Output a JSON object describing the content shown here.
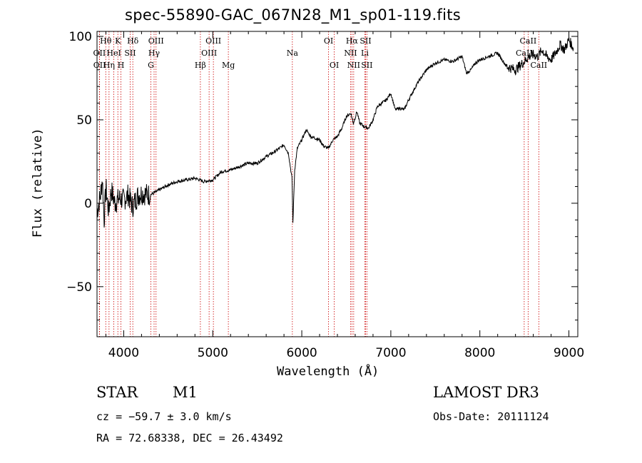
{
  "chart_data": {
    "type": "line",
    "title": "spec-55890-GAC_067N28_M1_sp01-119.fits",
    "xlabel": "Wavelength (Å)",
    "ylabel": "Flux (relative)",
    "xlim": [
      3700,
      9100
    ],
    "ylim": [
      -80,
      103
    ],
    "xticks": [
      4000,
      5000,
      6000,
      7000,
      8000,
      9000
    ],
    "xtick_labels": [
      "4000",
      "5000",
      "6000",
      "7000",
      "8000",
      "9000"
    ],
    "yticks": [
      -50,
      0,
      50,
      100
    ],
    "ytick_labels": [
      "−50",
      "0",
      "50",
      "100"
    ],
    "grid": false,
    "series": [
      {
        "x": [
          3700,
          3740,
          3760,
          3780,
          3800,
          3830,
          3860,
          3900,
          3950,
          4000,
          4050,
          4100,
          4150,
          4200,
          4300,
          4400,
          4500,
          4600,
          4700,
          4800,
          4850,
          4900,
          5000,
          5100,
          5200,
          5300,
          5400,
          5500,
          5600,
          5700,
          5800,
          5850,
          5890,
          5900,
          5920,
          5950,
          6000,
          6050,
          6100,
          6150,
          6200,
          6250,
          6300,
          6350,
          6400,
          6450,
          6500,
          6550,
          6580,
          6620,
          6650,
          6700,
          6750,
          6800,
          6850,
          6900,
          6950,
          7000,
          7050,
          7100,
          7150,
          7200,
          7300,
          7400,
          7500,
          7600,
          7700,
          7800,
          7850,
          7900,
          7950,
          8000,
          8100,
          8200,
          8300,
          8400,
          8500,
          8550,
          8600,
          8650,
          8700,
          8750,
          8800,
          8850,
          8900,
          8950,
          9000,
          9050
        ],
        "y": [
          -5,
          5,
          15,
          -10,
          10,
          -5,
          8,
          0,
          3,
          2,
          5,
          -2,
          4,
          6,
          5,
          8,
          11,
          13,
          14,
          15,
          14,
          13,
          14,
          19,
          20,
          22,
          24,
          24,
          28,
          31,
          35,
          30,
          15,
          -12,
          20,
          33,
          38,
          44,
          40,
          39,
          38,
          34,
          33,
          38,
          40,
          45,
          52,
          54,
          48,
          55,
          48,
          46,
          45,
          50,
          58,
          60,
          62,
          66,
          56,
          57,
          56,
          62,
          72,
          80,
          84,
          86,
          85,
          88,
          78,
          80,
          84,
          86,
          88,
          90,
          82,
          80,
          85,
          88,
          89,
          88,
          92,
          88,
          86,
          90,
          95,
          92,
          98,
          93
        ]
      }
    ],
    "line_markers": [
      {
        "label": "Hθ",
        "x": 3798,
        "row": 0
      },
      {
        "label": "OII",
        "x": 3727,
        "row": 1
      },
      {
        "label": "OII",
        "x": 3729,
        "row": 2
      },
      {
        "label": "Hη",
        "x": 3835,
        "row": 2
      },
      {
        "label": "HeI",
        "x": 3889,
        "row": 1
      },
      {
        "label": "K",
        "x": 3934,
        "row": 0
      },
      {
        "label": "H",
        "x": 3969,
        "row": 2
      },
      {
        "label": "SII",
        "x": 4072,
        "row": 1
      },
      {
        "label": "Hδ",
        "x": 4102,
        "row": 0
      },
      {
        "label": "G",
        "x": 4305,
        "row": 2
      },
      {
        "label": "Hγ",
        "x": 4341,
        "row": 1
      },
      {
        "label": "OIII",
        "x": 4363,
        "row": 0
      },
      {
        "label": "Hβ",
        "x": 4861,
        "row": 2
      },
      {
        "label": "OIII",
        "x": 4959,
        "row": 1
      },
      {
        "label": "OIII",
        "x": 5007,
        "row": 0
      },
      {
        "label": "Mg",
        "x": 5175,
        "row": 2
      },
      {
        "label": "Na",
        "x": 5894,
        "row": 1
      },
      {
        "label": "OI",
        "x": 6300,
        "row": 0
      },
      {
        "label": "OI",
        "x": 6364,
        "row": 2
      },
      {
        "label": "NII",
        "x": 6548,
        "row": 1
      },
      {
        "label": "Hα",
        "x": 6563,
        "row": 0
      },
      {
        "label": "NII",
        "x": 6583,
        "row": 2
      },
      {
        "label": "Li",
        "x": 6708,
        "row": 1
      },
      {
        "label": "SII",
        "x": 6716,
        "row": 0
      },
      {
        "label": "SII",
        "x": 6731,
        "row": 2
      },
      {
        "label": "CaII",
        "x": 8498,
        "row": 1
      },
      {
        "label": "CaII",
        "x": 8542,
        "row": 0
      },
      {
        "label": "CaII",
        "x": 8662,
        "row": 2
      }
    ],
    "colors": {
      "spectrum": "#000000",
      "marker_line": "#cc0000"
    }
  },
  "info": {
    "class": "STAR",
    "subclass": "M1",
    "survey": "LAMOST DR3",
    "cz": "cz = −59.7 ± 3.0 km/s",
    "obs_date": "Obs-Date: 20111124",
    "coords": "RA =  72.68338, DEC =  26.43492"
  }
}
